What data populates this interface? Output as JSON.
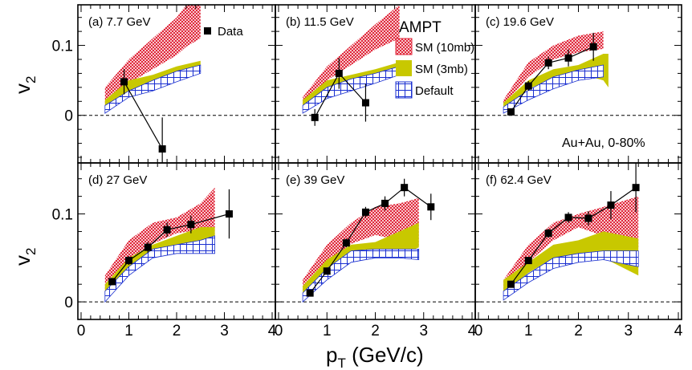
{
  "figure": {
    "y_axis_title_main": "v",
    "y_axis_title_sub": "2",
    "x_axis_title_main": "p",
    "x_axis_title_sub": "T",
    "x_axis_title_unit": " (GeV/c)",
    "colors": {
      "sm10": "#e0283c",
      "sm3": "#c8c800",
      "default": "#1a2fd0",
      "overlap": "#ff6a00",
      "data": "#000000"
    },
    "legend": {
      "title": "AMPT",
      "data_label": "Data",
      "sm10_label": "SM (10mb)",
      "sm3_label": "SM (3mb)",
      "default_label": "Default"
    },
    "annotation": "Au+Au, 0-80%"
  },
  "chart_data": [
    {
      "type": "band-scatter",
      "label": "(a) 7.7 GeV",
      "xlim": [
        0,
        4
      ],
      "ylim": [
        -0.068,
        0.158
      ],
      "xticks": [
        0,
        1,
        2,
        3,
        4
      ],
      "yticks": [
        0,
        0.1
      ],
      "xticklabels": [
        "0",
        "1",
        "2",
        "3",
        "4"
      ],
      "yticklabels": [
        "0",
        "0.1"
      ],
      "data": {
        "x": [
          0.9,
          1.7
        ],
        "y": [
          0.048,
          -0.048
        ],
        "err": [
          0.018,
          0.045
        ]
      },
      "bands": {
        "sm10": {
          "x": [
            0.5,
            1.0,
            1.5,
            2.0,
            2.2,
            2.5
          ],
          "low": [
            0.015,
            0.046,
            0.066,
            0.086,
            0.098,
            0.11
          ],
          "high": [
            0.04,
            0.08,
            0.11,
            0.14,
            0.158,
            0.158
          ]
        },
        "sm3": {
          "x": [
            0.5,
            1.0,
            1.5,
            2.0,
            2.5
          ],
          "low": [
            0.01,
            0.035,
            0.045,
            0.058,
            0.068
          ],
          "high": [
            0.022,
            0.05,
            0.058,
            0.07,
            0.078
          ]
        },
        "default": {
          "x": [
            0.5,
            1.0,
            1.5,
            2.0,
            2.5
          ],
          "low": [
            0.003,
            0.026,
            0.035,
            0.048,
            0.06
          ],
          "high": [
            0.014,
            0.035,
            0.05,
            0.063,
            0.072
          ]
        }
      }
    },
    {
      "type": "band-scatter",
      "label": "(b) 11.5 GeV",
      "xlim": [
        0,
        4
      ],
      "ylim": [
        -0.068,
        0.158
      ],
      "xticks": [
        0,
        1,
        2,
        3,
        4
      ],
      "yticks": [
        0,
        0.1
      ],
      "xticklabels": [
        "0",
        "1",
        "2",
        "3",
        "4"
      ],
      "yticklabels": [
        "0",
        "0.1"
      ],
      "data": {
        "x": [
          0.75,
          1.25,
          1.8
        ],
        "y": [
          -0.003,
          0.06,
          0.018
        ],
        "err": [
          0.012,
          0.022,
          0.027
        ]
      },
      "bands": {
        "sm10": {
          "x": [
            0.5,
            1.0,
            1.5,
            2.0,
            2.5
          ],
          "low": [
            0.016,
            0.05,
            0.072,
            0.094,
            0.11
          ],
          "high": [
            0.026,
            0.07,
            0.1,
            0.13,
            0.158
          ]
        },
        "sm3": {
          "x": [
            0.5,
            1.0,
            1.5,
            2.0,
            2.5
          ],
          "low": [
            0.008,
            0.028,
            0.04,
            0.055,
            0.06
          ],
          "high": [
            0.022,
            0.05,
            0.058,
            0.066,
            0.076
          ]
        },
        "default": {
          "x": [
            0.5,
            1.0,
            1.5,
            2.0,
            2.5
          ],
          "low": [
            0.003,
            0.024,
            0.035,
            0.046,
            0.058
          ],
          "high": [
            0.014,
            0.04,
            0.052,
            0.06,
            0.07
          ]
        }
      }
    },
    {
      "type": "band-scatter",
      "label": "(c) 19.6 GeV",
      "xlim": [
        0,
        4
      ],
      "ylim": [
        -0.068,
        0.158
      ],
      "xticks": [
        0,
        1,
        2,
        3,
        4
      ],
      "yticks": [
        0,
        0.1
      ],
      "xticklabels": [
        "0",
        "1",
        "2",
        "3",
        "4"
      ],
      "yticklabels": [
        "0",
        "0.1"
      ],
      "data": {
        "x": [
          0.65,
          1.0,
          1.4,
          1.8,
          2.3
        ],
        "y": [
          0.005,
          0.042,
          0.075,
          0.082,
          0.098
        ],
        "err": [
          0.005,
          0.007,
          0.009,
          0.012,
          0.02
        ]
      },
      "bands": {
        "sm10": {
          "x": [
            0.5,
            1.0,
            1.5,
            2.0,
            2.5
          ],
          "low": [
            0.015,
            0.055,
            0.08,
            0.09,
            0.095
          ],
          "high": [
            0.022,
            0.076,
            0.1,
            0.114,
            0.12
          ]
        },
        "sm3": {
          "x": [
            0.5,
            1.0,
            1.5,
            2.0,
            2.5,
            2.6
          ],
          "low": [
            0.008,
            0.038,
            0.052,
            0.06,
            0.05,
            0.04
          ],
          "high": [
            0.018,
            0.05,
            0.066,
            0.072,
            0.088,
            0.088
          ]
        },
        "default": {
          "x": [
            0.5,
            1.0,
            1.5,
            2.0,
            2.5
          ],
          "low": [
            0.003,
            0.022,
            0.038,
            0.05,
            0.055
          ],
          "high": [
            0.012,
            0.036,
            0.055,
            0.065,
            0.072
          ]
        }
      }
    },
    {
      "type": "band-scatter",
      "label": "(d) 27 GeV",
      "xlim": [
        0,
        4
      ],
      "ylim": [
        -0.02,
        0.158
      ],
      "xticks": [
        0,
        1,
        2,
        3,
        4
      ],
      "yticks": [
        0,
        0.1
      ],
      "xticklabels": [
        "0",
        "1",
        "2",
        "3",
        "4"
      ],
      "yticklabels": [
        "0",
        "0.1"
      ],
      "data": {
        "x": [
          0.65,
          1.0,
          1.4,
          1.8,
          2.3,
          3.1
        ],
        "y": [
          0.023,
          0.047,
          0.062,
          0.082,
          0.088,
          0.1
        ],
        "err": [
          0.004,
          0.005,
          0.006,
          0.008,
          0.01,
          0.028
        ]
      },
      "bands": {
        "sm10": {
          "x": [
            0.5,
            1.0,
            1.5,
            2.0,
            2.5,
            2.8
          ],
          "low": [
            0.012,
            0.045,
            0.066,
            0.078,
            0.082,
            0.07
          ],
          "high": [
            0.03,
            0.07,
            0.09,
            0.096,
            0.112,
            0.13
          ]
        },
        "sm3": {
          "x": [
            0.5,
            1.0,
            1.5,
            2.0,
            2.5,
            2.8
          ],
          "low": [
            0.005,
            0.035,
            0.055,
            0.06,
            0.065,
            0.06
          ],
          "high": [
            0.02,
            0.05,
            0.065,
            0.075,
            0.085,
            0.085
          ]
        },
        "default": {
          "x": [
            0.5,
            1.0,
            1.5,
            2.0,
            2.5,
            2.8
          ],
          "low": [
            0.0,
            0.03,
            0.05,
            0.055,
            0.055,
            0.055
          ],
          "high": [
            0.012,
            0.04,
            0.06,
            0.065,
            0.07,
            0.075
          ]
        }
      }
    },
    {
      "type": "band-scatter",
      "label": "(e) 39 GeV",
      "xlim": [
        0,
        4
      ],
      "ylim": [
        -0.02,
        0.158
      ],
      "xticks": [
        0,
        1,
        2,
        3,
        4
      ],
      "yticks": [
        0,
        0.1
      ],
      "xticklabels": [
        "0",
        "1",
        "2",
        "3",
        "4"
      ],
      "yticklabels": [
        "0",
        "0.1"
      ],
      "data": {
        "x": [
          0.65,
          1.0,
          1.4,
          1.8,
          2.2,
          2.6,
          3.15
        ],
        "y": [
          0.01,
          0.035,
          0.067,
          0.102,
          0.112,
          0.13,
          0.108
        ],
        "err": [
          0.003,
          0.004,
          0.005,
          0.006,
          0.008,
          0.01,
          0.015
        ]
      },
      "bands": {
        "sm10": {
          "x": [
            0.5,
            1.0,
            1.5,
            2.0,
            2.5,
            2.9
          ],
          "low": [
            0.012,
            0.045,
            0.066,
            0.076,
            0.07,
            0.062
          ],
          "high": [
            0.025,
            0.065,
            0.09,
            0.108,
            0.112,
            0.118
          ]
        },
        "sm3": {
          "x": [
            0.5,
            1.0,
            1.5,
            2.0,
            2.5,
            2.9
          ],
          "low": [
            0.005,
            0.03,
            0.05,
            0.052,
            0.052,
            0.062
          ],
          "high": [
            0.018,
            0.048,
            0.065,
            0.068,
            0.08,
            0.09
          ]
        },
        "default": {
          "x": [
            0.5,
            1.0,
            1.5,
            2.0,
            2.5,
            2.9
          ],
          "low": [
            0.0,
            0.025,
            0.045,
            0.05,
            0.05,
            0.048
          ],
          "high": [
            0.01,
            0.038,
            0.058,
            0.06,
            0.06,
            0.06
          ]
        }
      }
    },
    {
      "type": "band-scatter",
      "label": "(f) 62.4 GeV",
      "xlim": [
        0,
        4
      ],
      "ylim": [
        -0.02,
        0.158
      ],
      "xticks": [
        0,
        1,
        2,
        3,
        4
      ],
      "yticks": [
        0,
        0.1
      ],
      "xticklabels": [
        "0",
        "1",
        "2",
        "3",
        "4"
      ],
      "yticklabels": [
        "0",
        "0.1"
      ],
      "data": {
        "x": [
          0.65,
          1.0,
          1.4,
          1.8,
          2.2,
          2.65,
          3.15
        ],
        "y": [
          0.02,
          0.047,
          0.078,
          0.096,
          0.095,
          0.11,
          0.13
        ],
        "err": [
          0.003,
          0.004,
          0.005,
          0.006,
          0.008,
          0.016,
          0.028
        ]
      },
      "bands": {
        "sm10": {
          "x": [
            0.5,
            1.0,
            1.5,
            2.0,
            2.5,
            3.2
          ],
          "low": [
            0.012,
            0.045,
            0.07,
            0.085,
            0.075,
            0.062
          ],
          "high": [
            0.025,
            0.065,
            0.09,
            0.1,
            0.108,
            0.12
          ]
        },
        "sm3": {
          "x": [
            0.5,
            1.0,
            1.5,
            2.0,
            2.5,
            3.2
          ],
          "low": [
            0.01,
            0.033,
            0.05,
            0.055,
            0.05,
            0.03
          ],
          "high": [
            0.025,
            0.045,
            0.065,
            0.07,
            0.08,
            0.072
          ]
        },
        "default": {
          "x": [
            0.5,
            1.0,
            1.5,
            2.0,
            2.5,
            3.2
          ],
          "low": [
            0.002,
            0.022,
            0.038,
            0.045,
            0.048,
            0.04
          ],
          "high": [
            0.012,
            0.032,
            0.05,
            0.055,
            0.058,
            0.058
          ]
        }
      }
    }
  ]
}
